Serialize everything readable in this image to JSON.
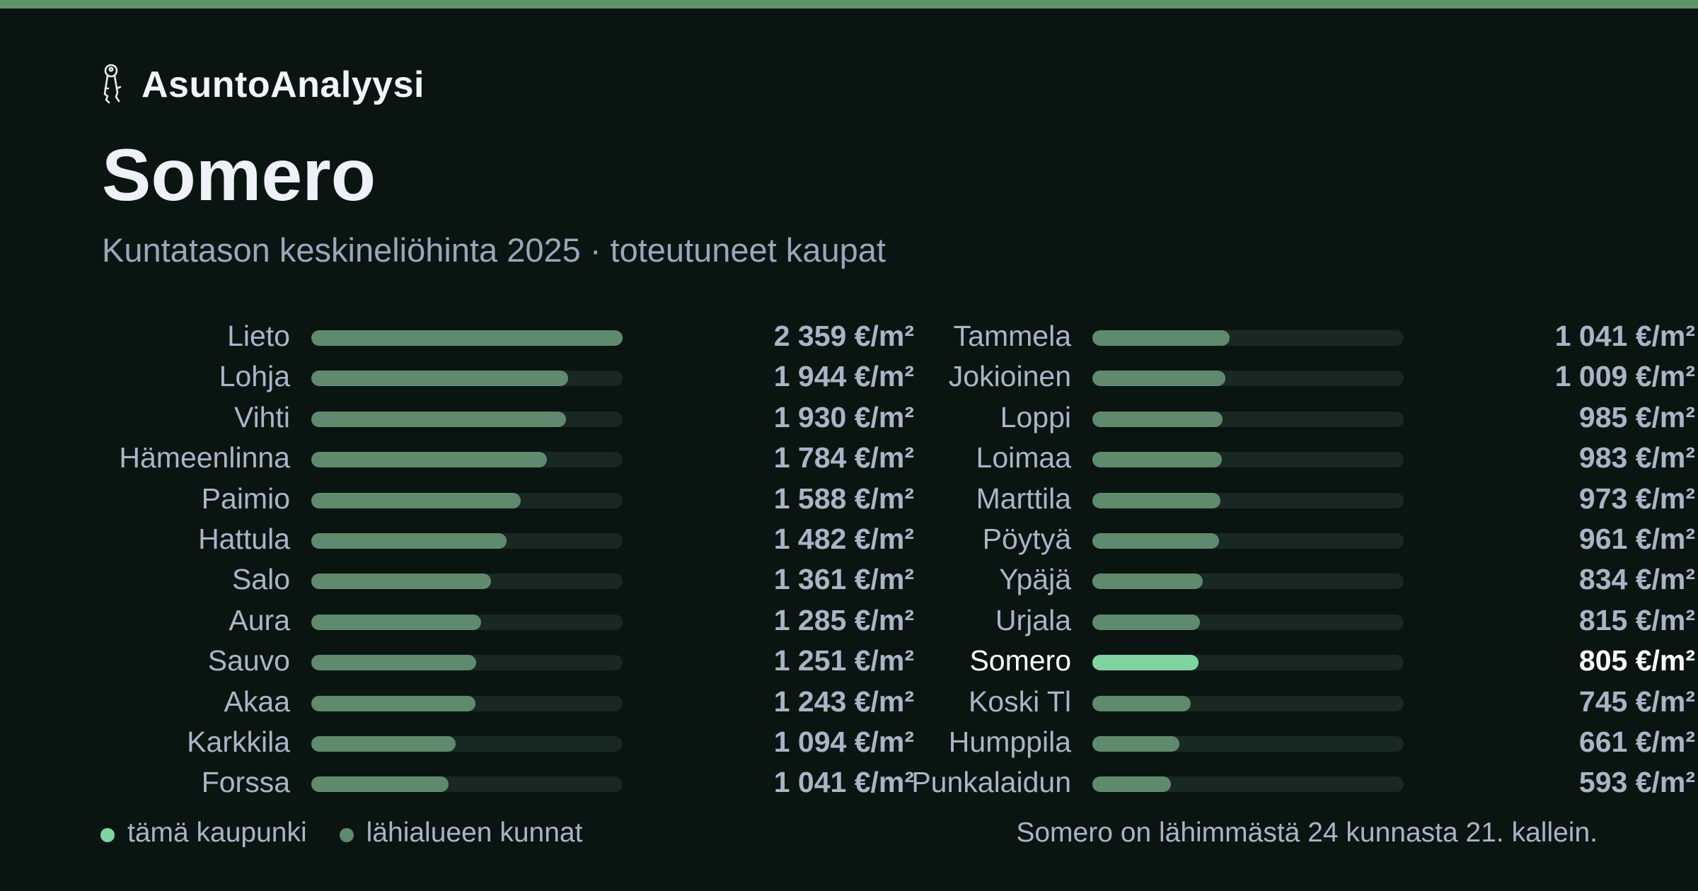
{
  "brand": {
    "name": "AsuntoAnalyysi",
    "icon": "keys-icon"
  },
  "title": "Somero",
  "subtitle": "Kuntatason keskineliöhinta 2025 · toteutuneet kaupat",
  "legend": {
    "highlight_label": "tämä kaupunki",
    "others_label": "lähialueen kunnat"
  },
  "footnote": "Somero on lähimmästä 24 kunnasta 21. kallein.",
  "colors": {
    "background": "#0a1512",
    "accent_bar": "#5f9469",
    "bar": "#5f8a6d",
    "bar_highlight": "#7fd4a0",
    "track": "#1a2823",
    "text_muted": "#a9b4c6"
  },
  "chart_data": {
    "type": "bar",
    "orientation": "horizontal",
    "unit": "€/m²",
    "xlim": [
      0,
      2359
    ],
    "grid": false,
    "highlight": "Somero",
    "categories": [
      "Lieto",
      "Lohja",
      "Vihti",
      "Hämeenlinna",
      "Paimio",
      "Hattula",
      "Salo",
      "Aura",
      "Sauvo",
      "Akaa",
      "Karkkila",
      "Forssa",
      "Tammela",
      "Jokioinen",
      "Loppi",
      "Loimaa",
      "Marttila",
      "Pöytyä",
      "Ypäjä",
      "Urjala",
      "Somero",
      "Koski Tl",
      "Humppila",
      "Punkalaidun"
    ],
    "values": [
      2359,
      1944,
      1930,
      1784,
      1588,
      1482,
      1361,
      1285,
      1251,
      1243,
      1094,
      1041,
      1041,
      1009,
      985,
      983,
      973,
      961,
      834,
      815,
      805,
      745,
      661,
      593
    ],
    "value_labels": [
      "2 359 €/m²",
      "1 944 €/m²",
      "1 930 €/m²",
      "1 784 €/m²",
      "1 588 €/m²",
      "1 482 €/m²",
      "1 361 €/m²",
      "1 285 €/m²",
      "1 251 €/m²",
      "1 243 €/m²",
      "1 094 €/m²",
      "1 041 €/m²",
      "1 041 €/m²",
      "1 009 €/m²",
      "985 €/m²",
      "983 €/m²",
      "973 €/m²",
      "961 €/m²",
      "834 €/m²",
      "815 €/m²",
      "805 €/m²",
      "745 €/m²",
      "661 €/m²",
      "593 €/m²"
    ]
  }
}
